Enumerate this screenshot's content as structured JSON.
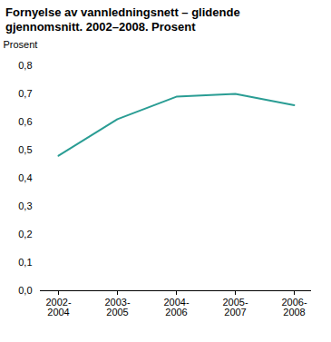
{
  "chart_data": {
    "type": "line",
    "title": "Fornyelse av vannledningsnett – glidende gjennomsnitt. 2002–2008. Prosent",
    "y_label": "Prosent",
    "categories": [
      "2002-2004",
      "2003-2005",
      "2004-2006",
      "2005-2007",
      "2006-2008"
    ],
    "values": [
      0.48,
      0.61,
      0.69,
      0.7,
      0.66
    ],
    "color": "#2a9d94",
    "ylim": [
      0,
      0.8
    ],
    "yticks": [
      {
        "value": 0,
        "label": "0,0"
      },
      {
        "value": 0.1,
        "label": "0,1"
      },
      {
        "value": 0.2,
        "label": "0,2"
      },
      {
        "value": 0.3,
        "label": "0,3"
      },
      {
        "value": 0.4,
        "label": "0,4"
      },
      {
        "value": 0.5,
        "label": "0,5"
      },
      {
        "value": 0.6,
        "label": "0,6"
      },
      {
        "value": 0.7,
        "label": "0,7"
      },
      {
        "value": 0.8,
        "label": "0,8"
      }
    ],
    "grid": false
  }
}
